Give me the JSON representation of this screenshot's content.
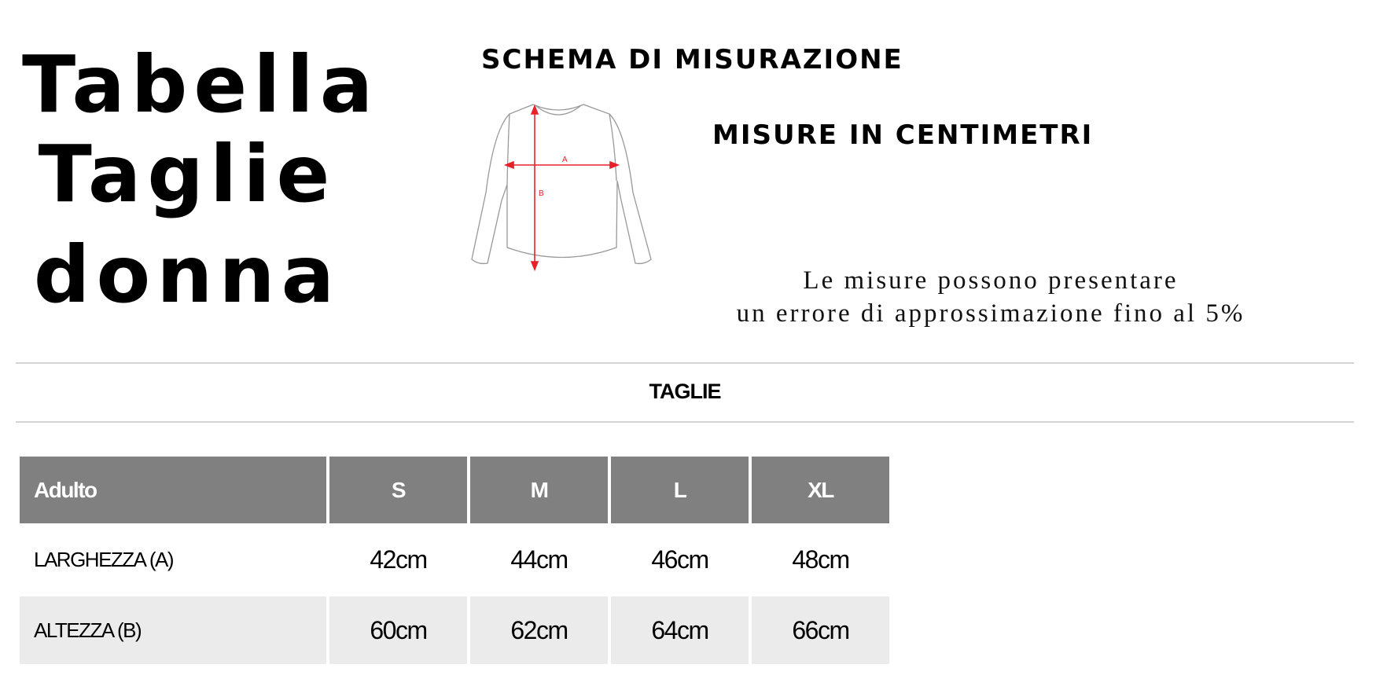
{
  "title": {
    "line1": "Tabella",
    "line2": "Taglie",
    "line3": "donna"
  },
  "diagram": {
    "heading": "Schema di misurazione",
    "label_a": "A",
    "label_b": "B",
    "arrow_color": "#e8202a"
  },
  "units_heading": "Misure in centimetri",
  "note": {
    "line1": "Le misure possono presentare",
    "line2": "un errore di approssimazione fino al 5%"
  },
  "section_title": "TAGLIE",
  "size_table": {
    "header_color": "#808080",
    "alt_row_color": "#ebebeb",
    "columns": [
      "Adulto",
      "S",
      "M",
      "L",
      "XL"
    ],
    "rows": [
      {
        "label": "LARGHEZZA (A)",
        "values": [
          "42cm",
          "44cm",
          "46cm",
          "48cm"
        ]
      },
      {
        "label": "ALTEZZA (B)",
        "values": [
          "60cm",
          "62cm",
          "64cm",
          "66cm"
        ]
      }
    ]
  }
}
